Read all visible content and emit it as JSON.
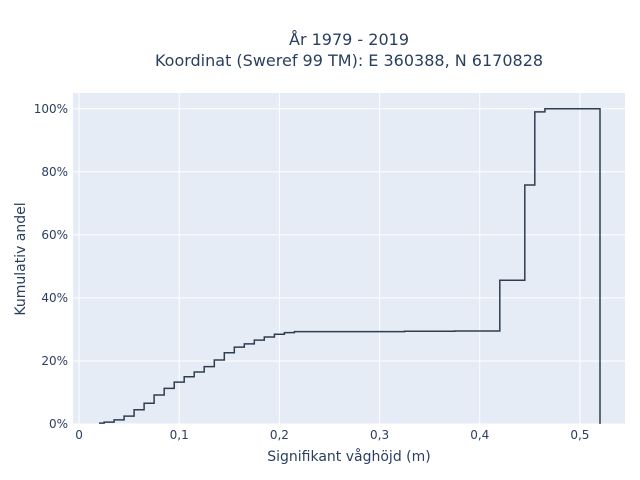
{
  "chart_data": {
    "type": "line",
    "line_shape": "step",
    "title_lines": [
      "År 1979 - 2019",
      "Koordinat (Sweref 99 TM): E 360388, N 6170828"
    ],
    "xlabel": "Signifikant våghöjd (m)",
    "ylabel": "Kumulativ andel",
    "xlim": [
      -0.006,
      0.545
    ],
    "ylim": [
      0,
      1.05
    ],
    "x_ticks": [
      0,
      0.1,
      0.2,
      0.3,
      0.4,
      0.5
    ],
    "x_tick_labels": [
      "0",
      "0,1",
      "0,2",
      "0,3",
      "0,4",
      "0,5"
    ],
    "y_ticks": [
      0,
      0.2,
      0.4,
      0.6,
      0.8,
      1.0
    ],
    "y_tick_labels": [
      "0%",
      "20%",
      "40%",
      "60%",
      "80%",
      "100%"
    ],
    "grid": true,
    "colors": {
      "plot_bg": "#e5ecf6",
      "grid": "#ffffff",
      "line": "#2f3e4f",
      "text": "#2a3f5f"
    },
    "series": [
      {
        "x": [
          0.02,
          0.03,
          0.04,
          0.05,
          0.06,
          0.07,
          0.08,
          0.09,
          0.1,
          0.11,
          0.12,
          0.13,
          0.14,
          0.15,
          0.16,
          0.17,
          0.18,
          0.19,
          0.2,
          0.21,
          0.22,
          0.25,
          0.3,
          0.35,
          0.4,
          0.44,
          0.45,
          0.46,
          0.47,
          0.48,
          0.49,
          0.5,
          0.51,
          0.52,
          0.52
        ],
        "y": [
          0.003,
          0.006,
          0.013,
          0.025,
          0.045,
          0.066,
          0.092,
          0.113,
          0.133,
          0.15,
          0.165,
          0.182,
          0.203,
          0.226,
          0.244,
          0.254,
          0.266,
          0.276,
          0.285,
          0.29,
          0.293,
          0.293,
          0.293,
          0.294,
          0.295,
          0.456,
          0.758,
          0.99,
          1.0,
          1.0,
          1.0,
          1.0,
          1.0,
          1.0,
          0.0
        ]
      }
    ]
  }
}
